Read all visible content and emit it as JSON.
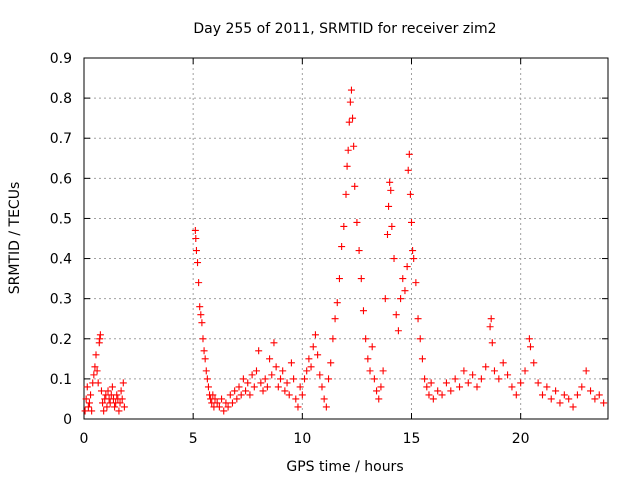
{
  "chart_data": {
    "type": "scatter",
    "title": "Day 255 of 2011, SRMTID for receiver zim2",
    "xlabel": "GPS time / hours",
    "ylabel": "SRMTID / TECUs",
    "xlim": [
      0,
      24
    ],
    "ylim": [
      0,
      0.9
    ],
    "grid": true,
    "marker": "+",
    "color": "#ff0000",
    "xticks": [
      {
        "value": 0,
        "label": "0"
      },
      {
        "value": 5,
        "label": "5"
      },
      {
        "value": 10,
        "label": "10"
      },
      {
        "value": 15,
        "label": "15"
      },
      {
        "value": 20,
        "label": "20"
      }
    ],
    "yticks": [
      {
        "value": 0,
        "label": "0"
      },
      {
        "value": 0.1,
        "label": "0.1"
      },
      {
        "value": 0.2,
        "label": "0.2"
      },
      {
        "value": 0.3,
        "label": "0.3"
      },
      {
        "value": 0.4,
        "label": "0.4"
      },
      {
        "value": 0.5,
        "label": "0.5"
      },
      {
        "value": 0.6,
        "label": "0.6"
      },
      {
        "value": 0.7,
        "label": "0.7"
      },
      {
        "value": 0.8,
        "label": "0.8"
      },
      {
        "value": 0.9,
        "label": "0.9"
      }
    ],
    "series": [
      {
        "name": "SRMTID",
        "points": [
          [
            0.05,
            0.02
          ],
          [
            0.1,
            0.05
          ],
          [
            0.15,
            0.08
          ],
          [
            0.2,
            0.03
          ],
          [
            0.25,
            0.04
          ],
          [
            0.3,
            0.06
          ],
          [
            0.35,
            0.02
          ],
          [
            0.4,
            0.09
          ],
          [
            0.45,
            0.11
          ],
          [
            0.5,
            0.13
          ],
          [
            0.55,
            0.16
          ],
          [
            0.6,
            0.12
          ],
          [
            0.65,
            0.09
          ],
          [
            0.7,
            0.19
          ],
          [
            0.72,
            0.2
          ],
          [
            0.75,
            0.21
          ],
          [
            0.8,
            0.07
          ],
          [
            0.85,
            0.04
          ],
          [
            0.9,
            0.02
          ],
          [
            0.95,
            0.05
          ],
          [
            1.0,
            0.06
          ],
          [
            1.05,
            0.03
          ],
          [
            1.1,
            0.07
          ],
          [
            1.15,
            0.05
          ],
          [
            1.2,
            0.04
          ],
          [
            1.25,
            0.06
          ],
          [
            1.3,
            0.08
          ],
          [
            1.35,
            0.05
          ],
          [
            1.4,
            0.03
          ],
          [
            1.45,
            0.04
          ],
          [
            1.5,
            0.06
          ],
          [
            1.55,
            0.05
          ],
          [
            1.6,
            0.02
          ],
          [
            1.65,
            0.04
          ],
          [
            1.7,
            0.07
          ],
          [
            1.75,
            0.05
          ],
          [
            1.8,
            0.09
          ],
          [
            1.85,
            0.03
          ],
          [
            5.1,
            0.47
          ],
          [
            5.12,
            0.45
          ],
          [
            5.15,
            0.42
          ],
          [
            5.2,
            0.39
          ],
          [
            5.25,
            0.34
          ],
          [
            5.3,
            0.28
          ],
          [
            5.35,
            0.26
          ],
          [
            5.4,
            0.24
          ],
          [
            5.45,
            0.2
          ],
          [
            5.5,
            0.17
          ],
          [
            5.55,
            0.15
          ],
          [
            5.6,
            0.12
          ],
          [
            5.65,
            0.1
          ],
          [
            5.7,
            0.08
          ],
          [
            5.75,
            0.06
          ],
          [
            5.8,
            0.05
          ],
          [
            5.85,
            0.04
          ],
          [
            5.9,
            0.06
          ],
          [
            5.95,
            0.03
          ],
          [
            6.0,
            0.05
          ],
          [
            6.1,
            0.04
          ],
          [
            6.2,
            0.03
          ],
          [
            6.3,
            0.05
          ],
          [
            6.4,
            0.02
          ],
          [
            6.5,
            0.04
          ],
          [
            6.6,
            0.03
          ],
          [
            6.7,
            0.06
          ],
          [
            6.8,
            0.04
          ],
          [
            6.9,
            0.07
          ],
          [
            7.0,
            0.05
          ],
          [
            7.1,
            0.08
          ],
          [
            7.2,
            0.06
          ],
          [
            7.3,
            0.1
          ],
          [
            7.4,
            0.07
          ],
          [
            7.5,
            0.09
          ],
          [
            7.6,
            0.06
          ],
          [
            7.7,
            0.11
          ],
          [
            7.8,
            0.08
          ],
          [
            7.9,
            0.12
          ],
          [
            8.0,
            0.17
          ],
          [
            8.1,
            0.09
          ],
          [
            8.2,
            0.07
          ],
          [
            8.3,
            0.1
          ],
          [
            8.4,
            0.08
          ],
          [
            8.5,
            0.15
          ],
          [
            8.6,
            0.11
          ],
          [
            8.7,
            0.19
          ],
          [
            8.8,
            0.13
          ],
          [
            8.9,
            0.08
          ],
          [
            9.0,
            0.1
          ],
          [
            9.1,
            0.12
          ],
          [
            9.2,
            0.07
          ],
          [
            9.3,
            0.09
          ],
          [
            9.4,
            0.06
          ],
          [
            9.5,
            0.14
          ],
          [
            9.6,
            0.1
          ],
          [
            9.7,
            0.05
          ],
          [
            9.8,
            0.03
          ],
          [
            9.9,
            0.08
          ],
          [
            10.0,
            0.06
          ],
          [
            10.1,
            0.1
          ],
          [
            10.2,
            0.12
          ],
          [
            10.3,
            0.15
          ],
          [
            10.4,
            0.13
          ],
          [
            10.5,
            0.18
          ],
          [
            10.6,
            0.21
          ],
          [
            10.7,
            0.16
          ],
          [
            10.8,
            0.11
          ],
          [
            10.9,
            0.08
          ],
          [
            11.0,
            0.05
          ],
          [
            11.1,
            0.03
          ],
          [
            11.2,
            0.1
          ],
          [
            11.3,
            0.14
          ],
          [
            11.4,
            0.2
          ],
          [
            11.5,
            0.25
          ],
          [
            11.6,
            0.29
          ],
          [
            11.7,
            0.35
          ],
          [
            11.8,
            0.43
          ],
          [
            11.9,
            0.48
          ],
          [
            12.0,
            0.56
          ],
          [
            12.05,
            0.63
          ],
          [
            12.1,
            0.67
          ],
          [
            12.15,
            0.74
          ],
          [
            12.2,
            0.79
          ],
          [
            12.25,
            0.82
          ],
          [
            12.3,
            0.75
          ],
          [
            12.35,
            0.68
          ],
          [
            12.4,
            0.58
          ],
          [
            12.5,
            0.49
          ],
          [
            12.6,
            0.42
          ],
          [
            12.7,
            0.35
          ],
          [
            12.8,
            0.27
          ],
          [
            12.9,
            0.2
          ],
          [
            13.0,
            0.15
          ],
          [
            13.1,
            0.12
          ],
          [
            13.2,
            0.18
          ],
          [
            13.3,
            0.1
          ],
          [
            13.4,
            0.07
          ],
          [
            13.5,
            0.05
          ],
          [
            13.6,
            0.08
          ],
          [
            13.7,
            0.12
          ],
          [
            13.8,
            0.3
          ],
          [
            13.9,
            0.46
          ],
          [
            13.95,
            0.53
          ],
          [
            14.0,
            0.59
          ],
          [
            14.05,
            0.57
          ],
          [
            14.1,
            0.48
          ],
          [
            14.2,
            0.4
          ],
          [
            14.3,
            0.26
          ],
          [
            14.4,
            0.22
          ],
          [
            14.5,
            0.3
          ],
          [
            14.6,
            0.35
          ],
          [
            14.7,
            0.32
          ],
          [
            14.8,
            0.38
          ],
          [
            14.85,
            0.62
          ],
          [
            14.9,
            0.66
          ],
          [
            14.95,
            0.56
          ],
          [
            15.0,
            0.49
          ],
          [
            15.05,
            0.42
          ],
          [
            15.1,
            0.4
          ],
          [
            15.2,
            0.34
          ],
          [
            15.3,
            0.25
          ],
          [
            15.4,
            0.2
          ],
          [
            15.5,
            0.15
          ],
          [
            15.6,
            0.1
          ],
          [
            15.7,
            0.08
          ],
          [
            15.8,
            0.06
          ],
          [
            15.9,
            0.09
          ],
          [
            16.0,
            0.05
          ],
          [
            16.2,
            0.07
          ],
          [
            16.4,
            0.06
          ],
          [
            16.6,
            0.09
          ],
          [
            16.8,
            0.07
          ],
          [
            17.0,
            0.1
          ],
          [
            17.2,
            0.08
          ],
          [
            17.4,
            0.12
          ],
          [
            17.6,
            0.09
          ],
          [
            17.8,
            0.11
          ],
          [
            18.0,
            0.08
          ],
          [
            18.2,
            0.1
          ],
          [
            18.4,
            0.13
          ],
          [
            18.6,
            0.23
          ],
          [
            18.65,
            0.25
          ],
          [
            18.7,
            0.19
          ],
          [
            18.8,
            0.12
          ],
          [
            19.0,
            0.1
          ],
          [
            19.2,
            0.14
          ],
          [
            19.4,
            0.11
          ],
          [
            19.6,
            0.08
          ],
          [
            19.8,
            0.06
          ],
          [
            20.0,
            0.09
          ],
          [
            20.2,
            0.12
          ],
          [
            20.4,
            0.2
          ],
          [
            20.45,
            0.18
          ],
          [
            20.6,
            0.14
          ],
          [
            20.8,
            0.09
          ],
          [
            21.0,
            0.06
          ],
          [
            21.2,
            0.08
          ],
          [
            21.4,
            0.05
          ],
          [
            21.6,
            0.07
          ],
          [
            21.8,
            0.04
          ],
          [
            22.0,
            0.06
          ],
          [
            22.2,
            0.05
          ],
          [
            22.4,
            0.03
          ],
          [
            22.6,
            0.06
          ],
          [
            22.8,
            0.08
          ],
          [
            23.0,
            0.12
          ],
          [
            23.2,
            0.07
          ],
          [
            23.4,
            0.05
          ],
          [
            23.6,
            0.06
          ],
          [
            23.8,
            0.04
          ]
        ]
      }
    ]
  }
}
